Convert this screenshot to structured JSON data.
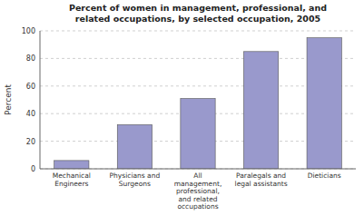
{
  "chart_data": {
    "type": "bar",
    "title": "Percent of women in management, professional, and\nrelated occupations, by selected occupation, 2005",
    "categories": [
      "Mechanical\nEngineers",
      "Physicians and\nSurgeons",
      "All\nmanagement,\nprofessional,\nand related\noccupations",
      "Paralegals and\nlegal assistants",
      "Dieticians"
    ],
    "values": [
      6,
      32,
      51,
      85,
      95
    ],
    "color": "#9999cc",
    "ylabel": "Percent",
    "ylim": [
      0,
      100
    ],
    "yticks": [
      0,
      20,
      40,
      60,
      80,
      100
    ],
    "grid": true
  }
}
